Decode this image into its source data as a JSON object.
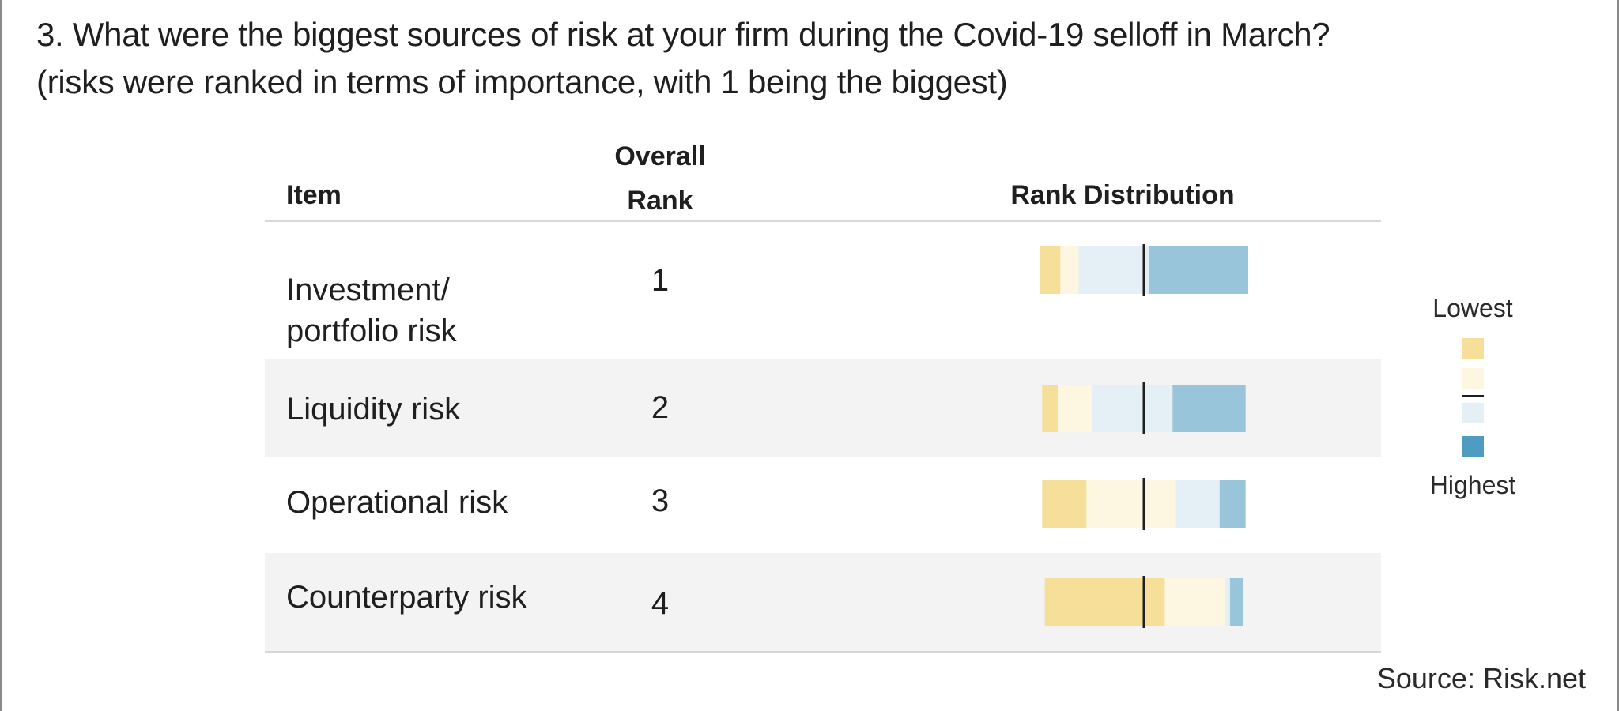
{
  "title": {
    "line1": "3. What were the biggest sources of risk at your firm during the Covid-19 selloff in March?",
    "line2": "(risks were ranked in terms of importance, with 1 being the biggest)"
  },
  "headers": {
    "item": "Item",
    "rank_line1": "Overall",
    "rank_line2": "Rank",
    "distribution": "Rank Distribution"
  },
  "legend": {
    "lowest": "Lowest",
    "highest": "Highest"
  },
  "source": "Source: Risk.net",
  "colors": {
    "rank4_lowest": "#f6df98",
    "rank3": "#fdf7e2",
    "rank2": "#e4f0f6",
    "rank1_highest": "#98c5da",
    "legend_highest": "#4f9cc2",
    "median_line": "#1f1f1f",
    "row_shade": "#f3f3f3"
  },
  "chart_data": {
    "type": "bar",
    "subtype": "diverging-stacked",
    "categories": [
      "Investment/ portfolio risk",
      "Liquidity risk",
      "Operational risk",
      "Counterparty risk"
    ],
    "label_lines": [
      [
        "Investment/",
        "portfolio risk"
      ],
      [
        "Liquidity risk"
      ],
      [
        "Operational risk"
      ],
      [
        "Counterparty risk"
      ]
    ],
    "overall_rank": [
      "1",
      "2",
      "3",
      "4"
    ],
    "segment_order": [
      "Rank 4 (Lowest)",
      "Rank 3",
      "Rank 2",
      "Rank 1 (Highest)"
    ],
    "rows": [
      {
        "name": "Investment/ portfolio risk",
        "segments": [
          8,
          7,
          27,
          38
        ]
      },
      {
        "name": "Liquidity risk",
        "segments": [
          6,
          13,
          31,
          28
        ]
      },
      {
        "name": "Operational risk",
        "segments": [
          17,
          34,
          17,
          10
        ]
      },
      {
        "name": "Counterparty risk",
        "segments": [
          46,
          23,
          2,
          5
        ]
      }
    ],
    "centered_at": "median (50%)",
    "title": "Rank Distribution",
    "legend": [
      "Lowest",
      "Highest"
    ]
  }
}
